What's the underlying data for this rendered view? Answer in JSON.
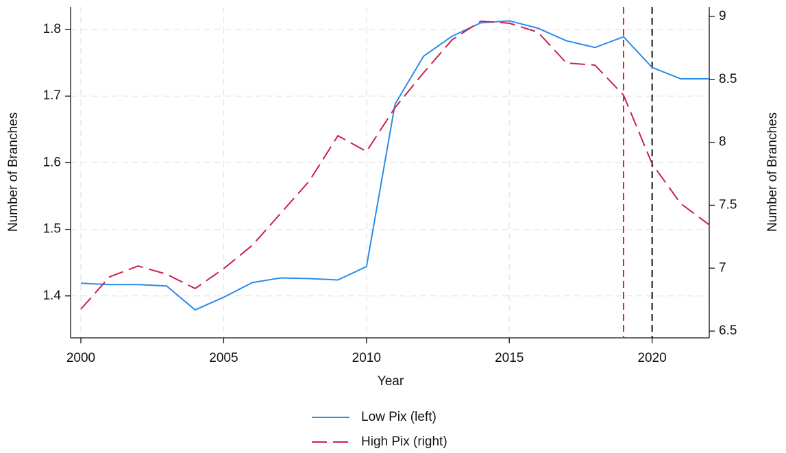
{
  "chart_data": {
    "type": "line",
    "x_label": "Year",
    "y_label": "Number of Branches",
    "y2_label": "Number of Branches",
    "x": [
      2000,
      2001,
      2002,
      2003,
      2004,
      2005,
      2006,
      2007,
      2008,
      2009,
      2010,
      2011,
      2012,
      2013,
      2014,
      2015,
      2016,
      2017,
      2018,
      2019,
      2020,
      2021,
      2022
    ],
    "series": [
      {
        "name": "Low Pix (left)",
        "color": "#2a8bea",
        "dashed": false,
        "axis": "y",
        "values": [
          1.419,
          1.417,
          1.417,
          1.415,
          1.379,
          1.398,
          1.42,
          1.427,
          1.426,
          1.424,
          1.444,
          1.688,
          1.76,
          1.79,
          1.81,
          1.813,
          1.802,
          1.783,
          1.773,
          1.789,
          1.743,
          1.726,
          1.726
        ]
      },
      {
        "name": "High Pix (right)",
        "color": "#c8204f",
        "dashed": true,
        "axis": "y2",
        "values": [
          6.674,
          6.93,
          7.017,
          6.952,
          6.838,
          6.996,
          7.181,
          7.437,
          7.693,
          8.052,
          7.927,
          8.276,
          8.553,
          8.815,
          8.962,
          8.946,
          8.875,
          8.63,
          8.613,
          8.374,
          7.829,
          7.513,
          7.344
        ]
      }
    ],
    "vlines": [
      {
        "x": 2019,
        "color": "#e0242a"
      },
      {
        "x": 2020,
        "color": "#111111"
      }
    ],
    "xlim": [
      1999.64,
      2022
    ],
    "xticks": [
      2000,
      2005,
      2010,
      2015,
      2020
    ],
    "ylim": [
      1.337,
      1.834
    ],
    "yticks": [
      1.4,
      1.5,
      1.6,
      1.7,
      1.8
    ],
    "y2lim": [
      6.446,
      9.076
    ],
    "y2ticks": [
      6.5,
      7,
      7.5,
      8,
      8.5,
      9
    ],
    "grid": true,
    "legend": "bottom"
  }
}
